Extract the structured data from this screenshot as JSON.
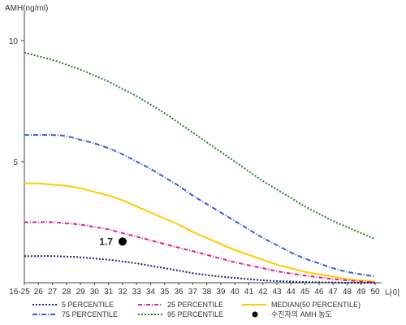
{
  "chart_data": {
    "type": "line",
    "ylabel": "AMH(ng/ml)",
    "xlabel": "나이",
    "yticks": [
      5,
      10
    ],
    "ylim": [
      0,
      11
    ],
    "categories": [
      "16-25",
      "26",
      "27",
      "28",
      "29",
      "30",
      "31",
      "32",
      "33",
      "34",
      "35",
      "36",
      "37",
      "38",
      "39",
      "40",
      "41",
      "42",
      "43",
      "44",
      "45",
      "46",
      "47",
      "48",
      "49",
      "50"
    ],
    "series": [
      {
        "name": "95 PERCENTILE",
        "color": "#2e7d32",
        "dash": "2,2",
        "values": [
          9.5,
          9.35,
          9.2,
          9.0,
          8.8,
          8.55,
          8.3,
          8.0,
          7.7,
          7.35,
          7.0,
          6.6,
          6.2,
          5.8,
          5.4,
          5.0,
          4.6,
          4.2,
          3.85,
          3.5,
          3.15,
          2.85,
          2.55,
          2.3,
          2.05,
          1.8
        ]
      },
      {
        "name": "75 PERCENTILE",
        "color": "#3a5fcd",
        "dash": "6,2,1,2",
        "values": [
          6.1,
          6.1,
          6.1,
          6.05,
          5.9,
          5.75,
          5.55,
          5.3,
          5.0,
          4.7,
          4.35,
          4.0,
          3.6,
          3.25,
          2.9,
          2.55,
          2.2,
          1.85,
          1.55,
          1.25,
          1.0,
          0.8,
          0.6,
          0.45,
          0.35,
          0.25
        ]
      },
      {
        "name": "MEDIAN(50 PERCENTILE)",
        "color": "#ffcc00",
        "dash": "",
        "values": [
          4.1,
          4.1,
          4.05,
          4.0,
          3.9,
          3.75,
          3.6,
          3.4,
          3.15,
          2.9,
          2.65,
          2.4,
          2.1,
          1.85,
          1.6,
          1.35,
          1.15,
          0.95,
          0.75,
          0.6,
          0.45,
          0.35,
          0.25,
          0.15,
          0.1,
          0.05
        ]
      },
      {
        "name": "25 PERCENTILE",
        "color": "#e0208c",
        "dash": "5,2,1,2",
        "values": [
          2.5,
          2.5,
          2.5,
          2.45,
          2.4,
          2.3,
          2.2,
          2.05,
          1.9,
          1.75,
          1.6,
          1.45,
          1.3,
          1.15,
          1.0,
          0.85,
          0.72,
          0.6,
          0.48,
          0.38,
          0.3,
          0.22,
          0.15,
          0.1,
          0.05,
          0.02
        ]
      },
      {
        "name": "5 PERCENTILE",
        "color": "#1a237e",
        "dash": "2,2",
        "values": [
          1.1,
          1.1,
          1.1,
          1.08,
          1.05,
          1.0,
          0.95,
          0.88,
          0.8,
          0.7,
          0.6,
          0.5,
          0.4,
          0.32,
          0.25,
          0.2,
          0.15,
          0.1,
          0.07,
          0.05,
          0.03,
          0.02,
          0.01,
          0.0,
          0.0,
          0.0
        ]
      }
    ],
    "points": [
      {
        "name": "수진자의 AMH 농도",
        "x": "32",
        "y": 1.7,
        "label": "1.7"
      }
    ],
    "legend": [
      {
        "name": "5 PERCENTILE",
        "color": "#1a237e",
        "dash": "2,2",
        "kind": "line"
      },
      {
        "name": "25 PERCENTILE",
        "color": "#e0208c",
        "dash": "5,2,1,2",
        "kind": "line"
      },
      {
        "name": "MEDIAN(50 PERCENTILE)",
        "color": "#ffcc00",
        "dash": "",
        "kind": "line"
      },
      {
        "name": "75 PERCENTILE",
        "color": "#3a5fcd",
        "dash": "6,2,1,2",
        "kind": "line"
      },
      {
        "name": "95 PERCENTILE",
        "color": "#2e7d32",
        "dash": "2,2",
        "kind": "line"
      },
      {
        "name": "수진자의 AMH 농도",
        "color": "#000000",
        "dash": "",
        "kind": "dot"
      }
    ],
    "legend_position": "bottom",
    "grid": false
  }
}
